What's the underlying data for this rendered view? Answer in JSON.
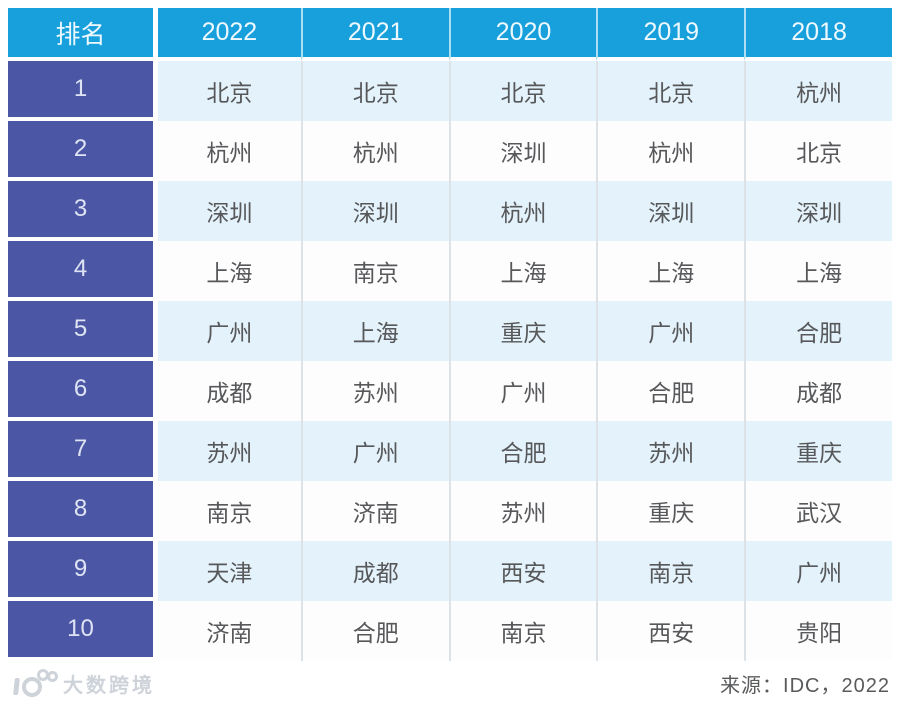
{
  "chart_data": {
    "type": "table",
    "columns": [
      "排名",
      "2022",
      "2021",
      "2020",
      "2019",
      "2018"
    ],
    "rows": [
      {
        "rank": "1",
        "cities": [
          "北京",
          "北京",
          "北京",
          "北京",
          "杭州"
        ]
      },
      {
        "rank": "2",
        "cities": [
          "杭州",
          "杭州",
          "深圳",
          "杭州",
          "北京"
        ]
      },
      {
        "rank": "3",
        "cities": [
          "深圳",
          "深圳",
          "杭州",
          "深圳",
          "深圳"
        ]
      },
      {
        "rank": "4",
        "cities": [
          "上海",
          "南京",
          "上海",
          "上海",
          "上海"
        ]
      },
      {
        "rank": "5",
        "cities": [
          "广州",
          "上海",
          "重庆",
          "广州",
          "合肥"
        ]
      },
      {
        "rank": "6",
        "cities": [
          "成都",
          "苏州",
          "广州",
          "合肥",
          "成都"
        ]
      },
      {
        "rank": "7",
        "cities": [
          "苏州",
          "广州",
          "合肥",
          "苏州",
          "重庆"
        ]
      },
      {
        "rank": "8",
        "cities": [
          "南京",
          "济南",
          "苏州",
          "重庆",
          "武汉"
        ]
      },
      {
        "rank": "9",
        "cities": [
          "天津",
          "成都",
          "西安",
          "南京",
          "广州"
        ]
      },
      {
        "rank": "10",
        "cities": [
          "济南",
          "合肥",
          "南京",
          "西安",
          "贵阳"
        ]
      }
    ]
  },
  "footer": {
    "source": "来源：IDC，2022",
    "watermark": "大数跨境"
  },
  "colors": {
    "header_bg": "#18a0dc",
    "rank_bg": "#4b57a5",
    "row_alt_bg": "#e4f2fb",
    "row_bg": "#fdfdfe",
    "cell_text": "#57585a",
    "header_text": "#eef9ff",
    "source_text": "#595a5c",
    "watermark_text": "#ccd1d8"
  }
}
